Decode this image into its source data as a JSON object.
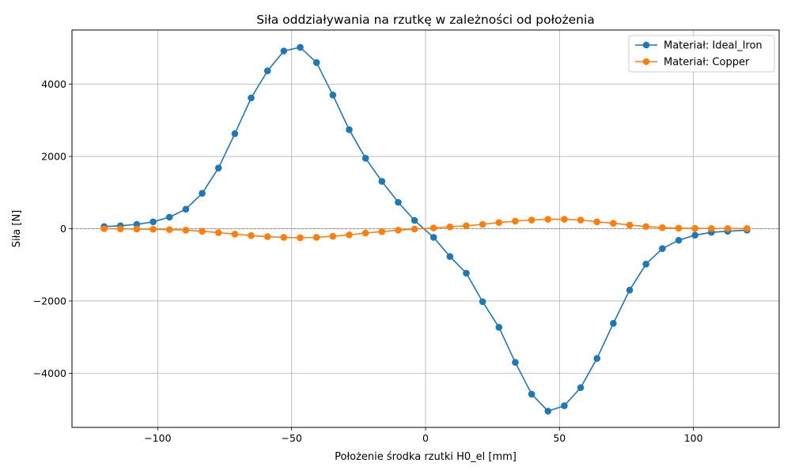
{
  "chart_data": {
    "type": "line",
    "title": "Siła oddziaływania na rzutkę w zależności od położenia",
    "xlabel": "Położenie środka rzutki H0_el [mm]",
    "ylabel": "Siła [N]",
    "xlim": [
      -132,
      132
    ],
    "ylim": [
      -5500,
      5500
    ],
    "xticks": [
      -100,
      -50,
      0,
      50,
      100
    ],
    "xtick_labels": [
      "−100",
      "−50",
      "0",
      "50",
      "100"
    ],
    "yticks": [
      -4000,
      -2000,
      0,
      2000,
      4000
    ],
    "ytick_labels": [
      "−4000",
      "−2000",
      "0",
      "2000",
      "4000"
    ],
    "grid": true,
    "zero_line": true,
    "legend_position": "top-right",
    "x": [
      -120,
      -113.9,
      -107.8,
      -101.7,
      -95.6,
      -89.5,
      -83.4,
      -77.3,
      -71.2,
      -65.1,
      -59,
      -52.9,
      -46.8,
      -40.7,
      -34.6,
      -28.5,
      -22.4,
      -16.3,
      -10.2,
      -4.1,
      3,
      9.1,
      15.2,
      21.3,
      27.4,
      33.5,
      39.6,
      45.7,
      51.8,
      57.9,
      64,
      70.1,
      76.2,
      82.3,
      88.4,
      94.5,
      100.6,
      106.7,
      112.8,
      120
    ],
    "series": [
      {
        "name": "Materiał: Ideal_Iron",
        "color": "#1f77b4",
        "values": [
          60,
          80,
          120,
          190,
          320,
          540,
          980,
          1680,
          2630,
          3620,
          4370,
          4920,
          5020,
          4600,
          3700,
          2740,
          1950,
          1310,
          730,
          230,
          -240,
          -770,
          -1230,
          -2020,
          -2730,
          -3700,
          -4580,
          -5050,
          -4900,
          -4400,
          -3590,
          -2620,
          -1700,
          -980,
          -550,
          -320,
          -180,
          -100,
          -70,
          -40
        ]
      },
      {
        "name": "Materiał: Copper",
        "color": "#ff7f0e",
        "values": [
          0,
          -5,
          -10,
          -15,
          -25,
          -40,
          -70,
          -110,
          -150,
          -190,
          -220,
          -240,
          -250,
          -240,
          -210,
          -170,
          -120,
          -80,
          -40,
          -10,
          20,
          50,
          80,
          120,
          170,
          210,
          240,
          260,
          260,
          240,
          190,
          150,
          100,
          60,
          30,
          15,
          10,
          5,
          5,
          5
        ]
      }
    ]
  }
}
